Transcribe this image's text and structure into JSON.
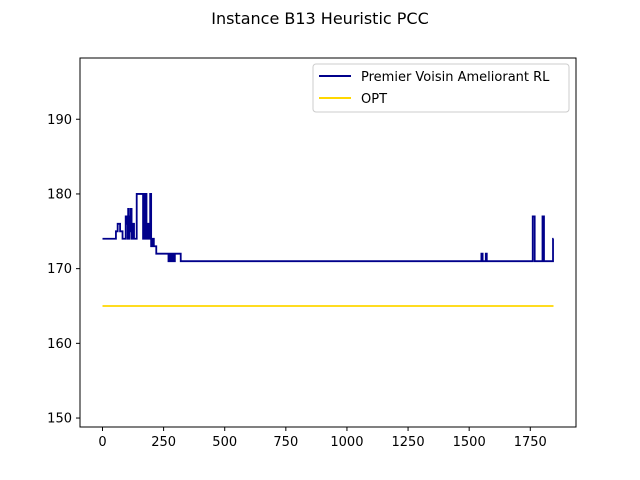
{
  "chart_data": {
    "type": "line",
    "title": "Instance B13 Heuristic PCC",
    "xlabel": "",
    "ylabel": "",
    "xlim": [
      -92,
      1937
    ],
    "ylim": [
      148.8,
      198.2
    ],
    "xticks": [
      0,
      250,
      500,
      750,
      1000,
      1250,
      1500,
      1750
    ],
    "yticks": [
      150,
      160,
      170,
      180,
      190
    ],
    "grid": false,
    "legend_position": "upper right",
    "series": [
      {
        "name": "Premier Voisin Ameliorant RL",
        "color": "#00008b",
        "step": true,
        "points": [
          [
            0,
            174
          ],
          [
            55,
            174
          ],
          [
            55,
            175
          ],
          [
            62,
            175
          ],
          [
            62,
            176
          ],
          [
            72,
            176
          ],
          [
            72,
            175
          ],
          [
            82,
            175
          ],
          [
            82,
            174
          ],
          [
            95,
            174
          ],
          [
            95,
            177
          ],
          [
            100,
            177
          ],
          [
            100,
            176
          ],
          [
            103,
            176
          ],
          [
            103,
            174
          ],
          [
            105,
            174
          ],
          [
            105,
            178
          ],
          [
            108,
            178
          ],
          [
            108,
            174
          ],
          [
            110,
            174
          ],
          [
            110,
            177
          ],
          [
            113,
            177
          ],
          [
            113,
            175
          ],
          [
            116,
            175
          ],
          [
            116,
            178
          ],
          [
            119,
            178
          ],
          [
            119,
            174
          ],
          [
            124,
            174
          ],
          [
            124,
            176
          ],
          [
            129,
            176
          ],
          [
            129,
            174
          ],
          [
            140,
            174
          ],
          [
            140,
            180
          ],
          [
            166,
            180
          ],
          [
            166,
            174
          ],
          [
            169,
            174
          ],
          [
            169,
            180
          ],
          [
            173,
            180
          ],
          [
            173,
            174
          ],
          [
            177,
            174
          ],
          [
            177,
            180
          ],
          [
            180,
            180
          ],
          [
            180,
            174
          ],
          [
            185,
            174
          ],
          [
            185,
            176
          ],
          [
            190,
            176
          ],
          [
            190,
            174
          ],
          [
            195,
            174
          ],
          [
            195,
            180
          ],
          [
            199,
            180
          ],
          [
            199,
            173
          ],
          [
            203,
            173
          ],
          [
            203,
            174
          ],
          [
            210,
            174
          ],
          [
            210,
            173
          ],
          [
            220,
            173
          ],
          [
            220,
            172
          ],
          [
            270,
            172
          ],
          [
            270,
            171
          ],
          [
            275,
            171
          ],
          [
            275,
            172
          ],
          [
            280,
            172
          ],
          [
            280,
            171
          ],
          [
            287,
            171
          ],
          [
            287,
            172
          ],
          [
            290,
            172
          ],
          [
            290,
            171
          ],
          [
            296,
            171
          ],
          [
            296,
            172
          ],
          [
            320,
            172
          ],
          [
            320,
            171
          ],
          [
            1550,
            171
          ],
          [
            1550,
            172
          ],
          [
            1555,
            172
          ],
          [
            1555,
            171
          ],
          [
            1568,
            171
          ],
          [
            1568,
            172
          ],
          [
            1572,
            172
          ],
          [
            1572,
            171
          ],
          [
            1760,
            171
          ],
          [
            1760,
            177
          ],
          [
            1768,
            177
          ],
          [
            1768,
            171
          ],
          [
            1800,
            171
          ],
          [
            1800,
            177
          ],
          [
            1806,
            177
          ],
          [
            1806,
            171
          ],
          [
            1843,
            171
          ],
          [
            1843,
            174
          ],
          [
            1845,
            174
          ]
        ]
      },
      {
        "name": "OPT",
        "color": "#ffd700",
        "step": false,
        "points": [
          [
            0,
            165
          ],
          [
            1845,
            165
          ]
        ]
      }
    ]
  }
}
